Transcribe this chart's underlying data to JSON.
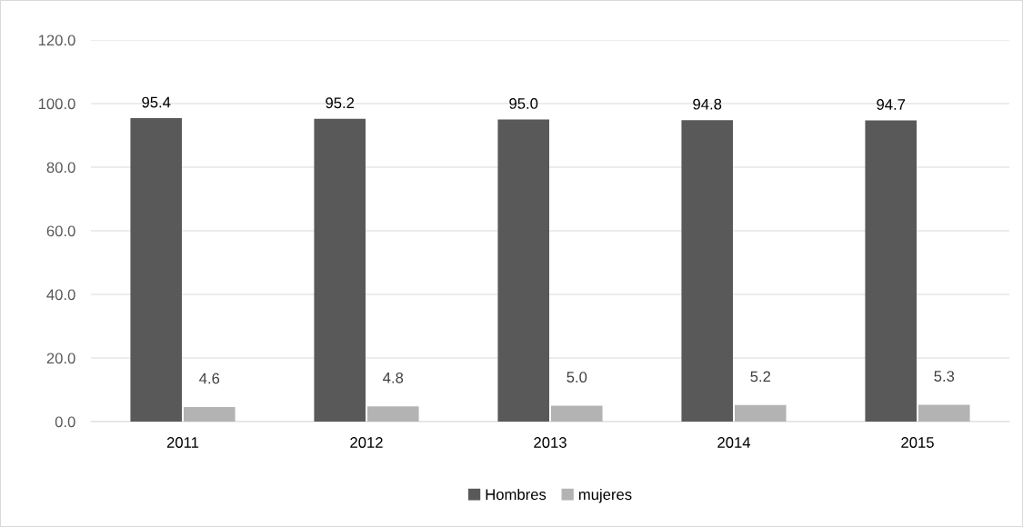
{
  "chart_data": {
    "type": "bar",
    "categories": [
      "2011",
      "2012",
      "2013",
      "2014",
      "2015"
    ],
    "series": [
      {
        "name": "Hombres",
        "color": "#595959",
        "values": [
          95.4,
          95.2,
          95.0,
          94.8,
          94.7
        ],
        "value_labels": [
          "95.4",
          "95.2",
          "95.0",
          "94.8",
          "94.7"
        ]
      },
      {
        "name": "mujeres",
        "color": "#b3b3b3",
        "values": [
          4.6,
          4.8,
          5.0,
          5.2,
          5.3
        ],
        "value_labels": [
          "4.6",
          "4.8",
          "5.0",
          "5.2",
          "5.3"
        ]
      }
    ],
    "ylim": [
      0,
      120
    ],
    "yticks": [
      {
        "value": 0,
        "label": "0.0"
      },
      {
        "value": 20,
        "label": "20.0"
      },
      {
        "value": 40,
        "label": "40.0"
      },
      {
        "value": 60,
        "label": "60.0"
      },
      {
        "value": 80,
        "label": "80.0"
      },
      {
        "value": 100,
        "label": "100.0"
      },
      {
        "value": 120,
        "label": "120.0"
      }
    ],
    "grid": "y",
    "legend": "bottom"
  }
}
